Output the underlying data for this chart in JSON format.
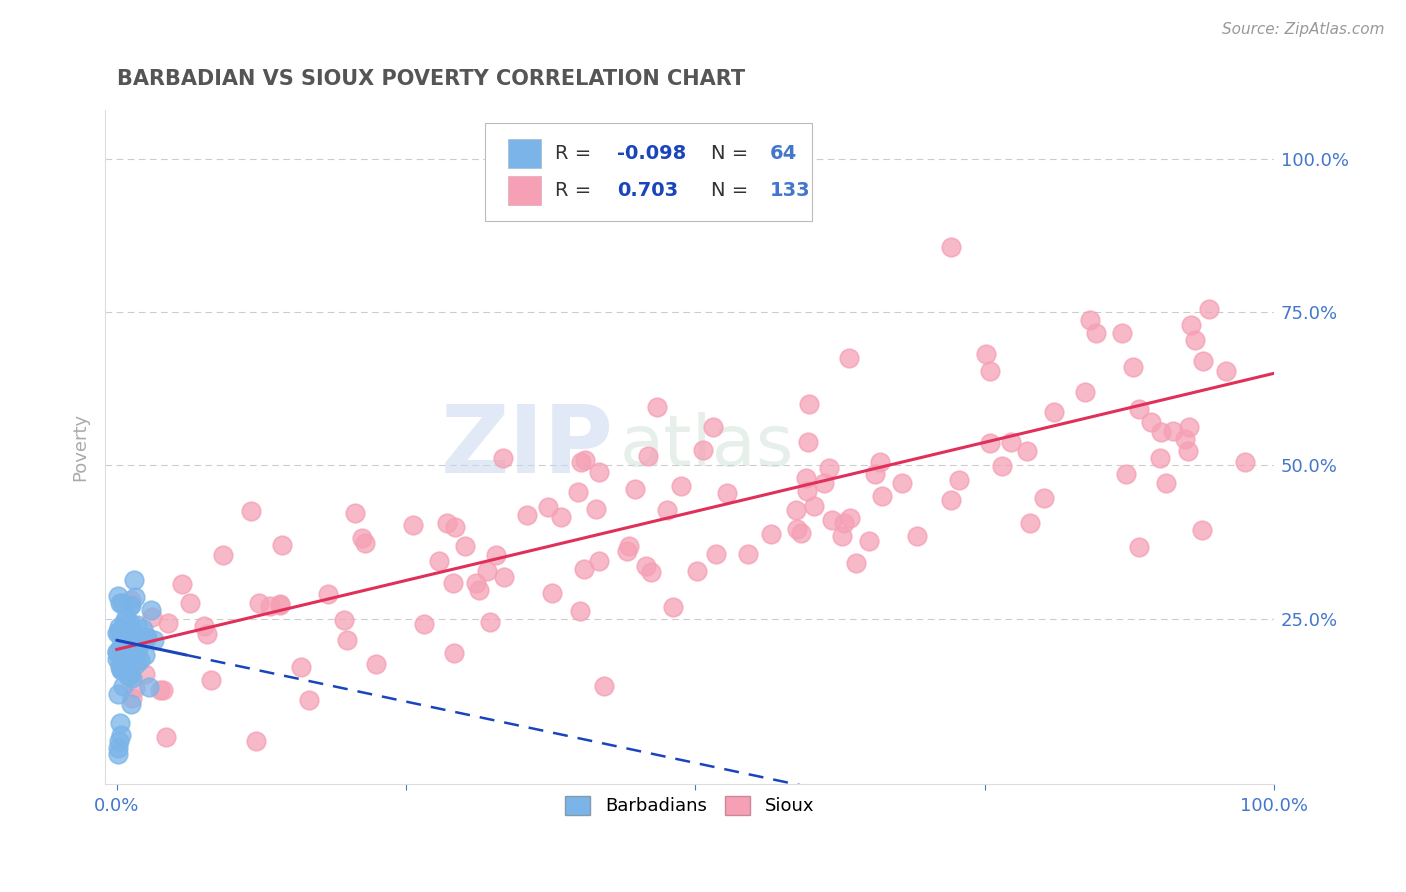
{
  "title": "BARBADIAN VS SIOUX POVERTY CORRELATION CHART",
  "source": "Source: ZipAtlas.com",
  "ylabel": "Poverty",
  "xlim": [
    0.0,
    1.0
  ],
  "ylim": [
    -0.02,
    1.08
  ],
  "barbadian_R": -0.098,
  "barbadian_N": 64,
  "sioux_R": 0.703,
  "sioux_N": 133,
  "barbadian_color": "#7ab4e8",
  "sioux_color": "#f5a0b5",
  "barbadian_line_color": "#1a44bb",
  "sioux_line_color": "#e0305a",
  "title_color": "#555555",
  "axis_label_color": "#4477cc",
  "legend_R_color": "#1a44bb",
  "legend_N_color": "#4477cc",
  "background_color": "#ffffff",
  "grid_color": "#cccccc"
}
